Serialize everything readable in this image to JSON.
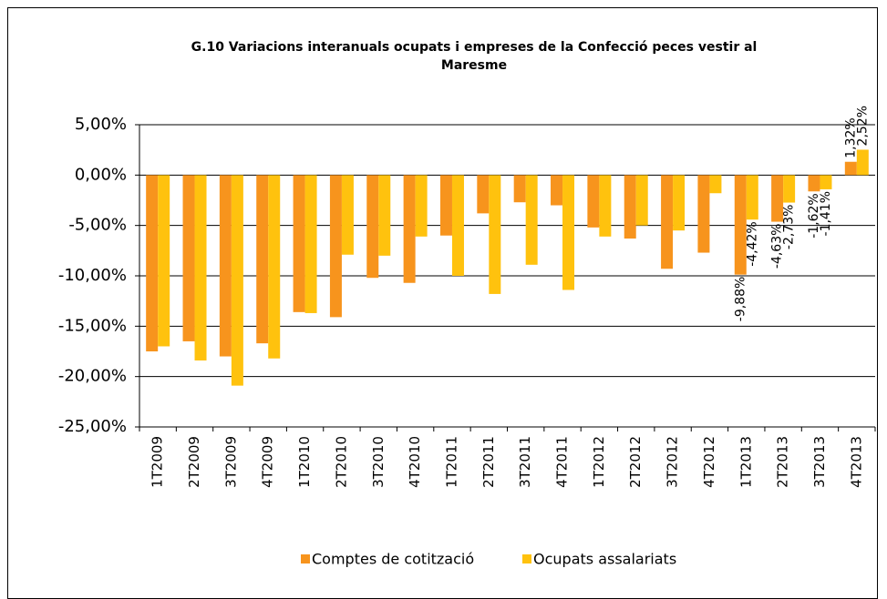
{
  "chart_data": {
    "type": "bar",
    "title": "G.10 Variacions interanuals ocupats i empreses de la Confecció peces vestir al Maresme",
    "categories": [
      "1T2009",
      "2T2009",
      "3T2009",
      "4T2009",
      "1T2010",
      "2T2010",
      "3T2010",
      "4T2010",
      "1T2011",
      "2T2011",
      "3T2011",
      "4T2011",
      "1T2012",
      "2T2012",
      "3T2012",
      "4T2012",
      "1T2013",
      "2T2013",
      "3T2013",
      "4T2013"
    ],
    "series": [
      {
        "name": "Comptes de cotització",
        "color": "#f7941d",
        "values": [
          -17.5,
          -16.5,
          -18.0,
          -16.7,
          -13.6,
          -14.1,
          -10.2,
          -10.7,
          -6.0,
          -3.8,
          -2.7,
          -3.0,
          -5.2,
          -6.3,
          -9.3,
          -7.7,
          -9.88,
          -4.63,
          -1.62,
          1.32
        ],
        "value_labels": [
          null,
          null,
          null,
          null,
          null,
          null,
          null,
          null,
          null,
          null,
          null,
          null,
          null,
          null,
          null,
          null,
          "-9,88%",
          "-4,63%",
          "-1,62%",
          "1,32%"
        ]
      },
      {
        "name": "Ocupats assalariats",
        "color": "#ffc20e",
        "values": [
          -17.0,
          -18.4,
          -20.9,
          -18.2,
          -13.7,
          -7.9,
          -8.0,
          -6.1,
          -10.0,
          -11.8,
          -8.9,
          -11.4,
          -6.1,
          -5.0,
          -5.5,
          -1.8,
          -4.42,
          -2.73,
          -1.41,
          2.52
        ],
        "value_labels": [
          null,
          null,
          null,
          null,
          null,
          null,
          null,
          null,
          null,
          null,
          null,
          null,
          null,
          null,
          null,
          null,
          "-4,42%",
          "-2,73%",
          "-1,41%",
          "2,52%"
        ]
      }
    ],
    "ylim": [
      -25,
      5
    ],
    "yticks": [
      {
        "value": -25,
        "label": "-25,00%"
      },
      {
        "value": -20,
        "label": "-20,00%"
      },
      {
        "value": -15,
        "label": "-15,00%"
      },
      {
        "value": -10,
        "label": "-10,00%"
      },
      {
        "value": -5,
        "label": "-5,00%"
      },
      {
        "value": 0,
        "label": "0,00%"
      },
      {
        "value": 5,
        "label": "5,00%"
      }
    ],
    "grid": true,
    "legend": "bottom"
  }
}
